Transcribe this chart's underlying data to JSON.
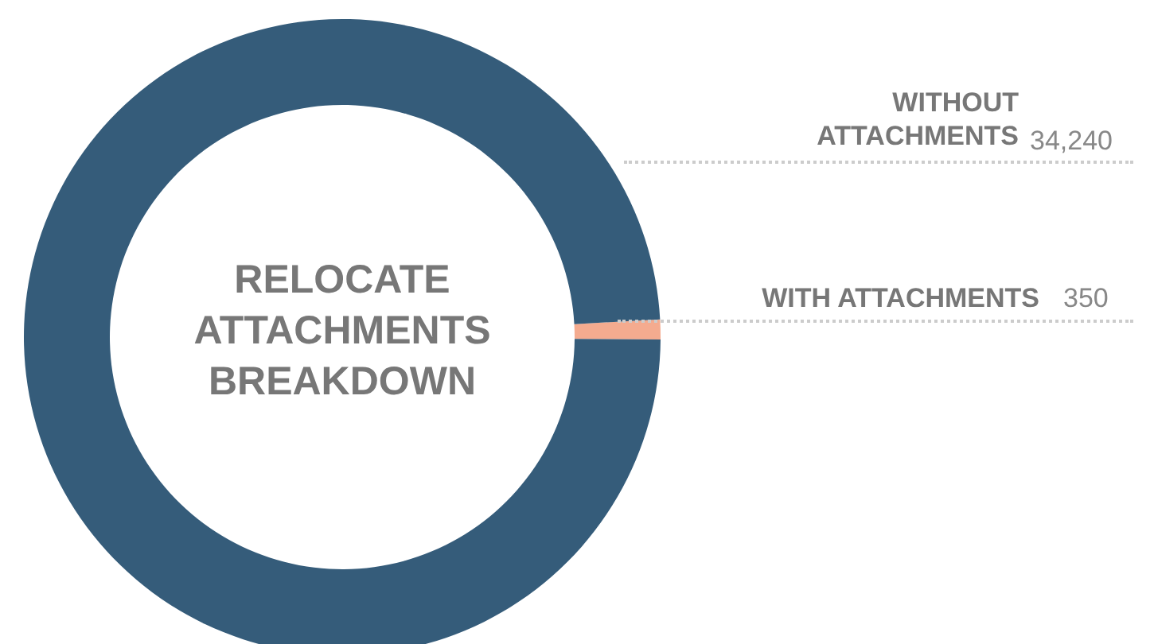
{
  "chart_data": {
    "type": "donut",
    "title": "RELOCATE ATTACHMENTS BREAKDOWN",
    "categories": [
      "WITH ATTACHMENTS",
      "WITHOUT ATTACHMENTS"
    ],
    "values": [
      350,
      34240
    ],
    "colors": [
      "#f4ab8f",
      "#355c7a"
    ],
    "value_labels": [
      "350",
      "34,240"
    ]
  }
}
